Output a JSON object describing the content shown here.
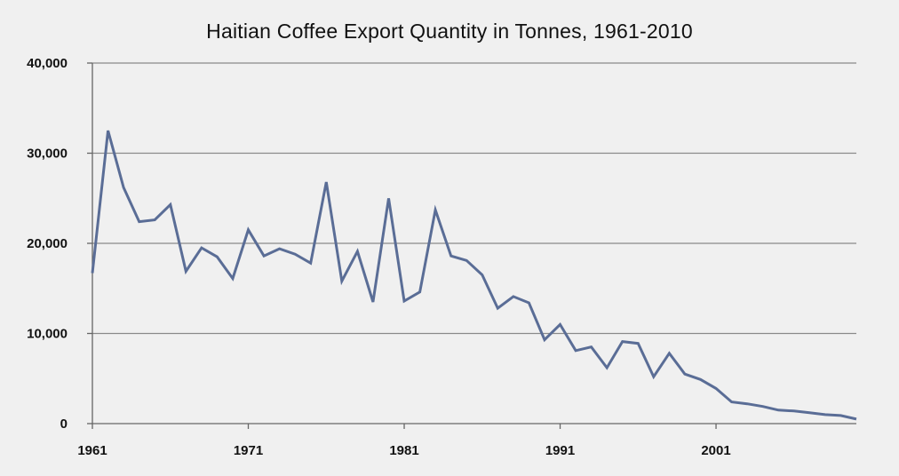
{
  "chart_data": {
    "type": "line",
    "title": "Haitian Coffee Export Quantity in Tonnes, 1961-2010",
    "xlabel": "",
    "ylabel": "",
    "x_tick_labels": [
      "1961",
      "1971",
      "1981",
      "1991",
      "2001"
    ],
    "y_tick_labels": [
      "0",
      "10,000",
      "20,000",
      "30,000",
      "40,000"
    ],
    "y_ticks": [
      0,
      10000,
      20000,
      30000,
      40000
    ],
    "xlim": [
      1961,
      2010
    ],
    "ylim": [
      0,
      40000
    ],
    "grid": "horizontal",
    "series": [
      {
        "color": "#5a6d96",
        "x": [
          1961,
          1962,
          1963,
          1964,
          1965,
          1966,
          1967,
          1968,
          1969,
          1970,
          1971,
          1972,
          1973,
          1974,
          1975,
          1976,
          1977,
          1978,
          1979,
          1980,
          1981,
          1982,
          1983,
          1984,
          1985,
          1986,
          1987,
          1988,
          1989,
          1990,
          1991,
          1992,
          1993,
          1994,
          1995,
          1996,
          1997,
          1998,
          1999,
          2000,
          2001,
          2002,
          2003,
          2004,
          2005,
          2006,
          2007,
          2008,
          2009,
          2010
        ],
        "values": [
          16700,
          32500,
          26200,
          22400,
          22600,
          24300,
          16900,
          19500,
          18500,
          16100,
          21500,
          18600,
          19400,
          18800,
          17800,
          26800,
          15800,
          19100,
          13500,
          25000,
          13600,
          14600,
          23700,
          18600,
          18100,
          16500,
          12800,
          14100,
          13400,
          9300,
          11000,
          8100,
          8500,
          6200,
          9100,
          8900,
          5200,
          7800,
          5500,
          4900,
          3900,
          2400,
          2200,
          1900,
          1500,
          1400,
          1200,
          1000,
          900,
          500
        ]
      }
    ]
  }
}
